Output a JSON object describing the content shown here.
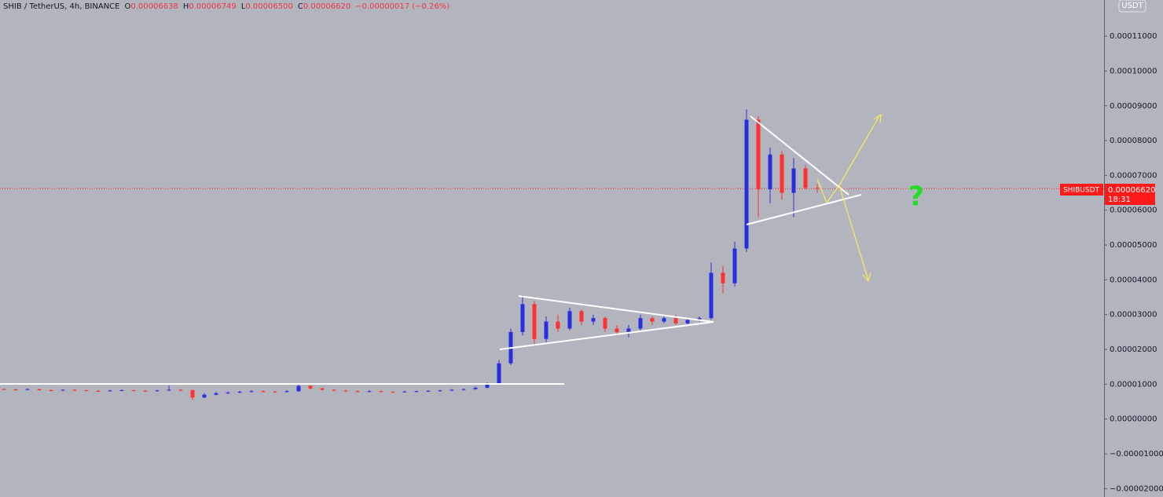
{
  "chart_data": {
    "type": "candlestick",
    "title": "SHIB / TetherUS, 4h, BINANCE",
    "ohlc_labels": [
      "O",
      "H",
      "L",
      "C"
    ],
    "ohlc_values": [
      "0.00006638",
      "0.00006749",
      "0.00006500",
      "0.00006620"
    ],
    "change": "−0.00000017 (−0.26%)",
    "currency": "USDT",
    "symbol_tag": "SHIBUSDT",
    "price_tag": "0.00006620",
    "countdown": "18:31",
    "annotation": "?",
    "up_color": "#2a2ee0",
    "down_color": "#ff3030",
    "ylim": [
      -2.24e-05,
      0.0001204
    ],
    "yticks": [
      {
        "value": -2e-05,
        "label": "−0.00002000"
      },
      {
        "value": -1e-05,
        "label": "−0.00001000"
      },
      {
        "value": 0,
        "label": "0.00000000"
      },
      {
        "value": 1e-05,
        "label": "0.00001000"
      },
      {
        "value": 2e-05,
        "label": "0.00002000"
      },
      {
        "value": 3e-05,
        "label": "0.00003000"
      },
      {
        "value": 4e-05,
        "label": "0.00004000"
      },
      {
        "value": 5e-05,
        "label": "0.00005000"
      },
      {
        "value": 6e-05,
        "label": "0.00006000"
      },
      {
        "value": 7e-05,
        "label": "0.00007000"
      },
      {
        "value": 8e-05,
        "label": "0.00008000"
      },
      {
        "value": 9e-05,
        "label": "0.00009000"
      },
      {
        "value": 0.0001,
        "label": "0.00010000"
      },
      {
        "value": 0.00011,
        "label": "0.00011000"
      }
    ],
    "open": [
      8.6e-06,
      8.5e-06,
      8.4e-06,
      8.6e-06,
      8.3e-06,
      8.2e-06,
      8.4e-06,
      8.3e-06,
      8.1e-06,
      8e-06,
      8.2e-06,
      8.3e-06,
      8.1e-06,
      8e-06,
      8.2e-06,
      8.4e-06,
      8.3e-06,
      6.2e-06,
      7e-06,
      7.4e-06,
      7.6e-06,
      7.8e-06,
      8e-06,
      7.9e-06,
      7.8e-06,
      8e-06,
      9.5e-06,
      8.8e-06,
      8.4e-06,
      8.2e-06,
      8e-06,
      7.9e-06,
      8e-06,
      7.8e-06,
      7.7e-06,
      7.9e-06,
      8e-06,
      8.1e-06,
      8.2e-06,
      8.4e-06,
      8.6e-06,
      9e-06,
      1e-05,
      1.6e-05,
      2.5e-05,
      3.3e-05,
      2.3e-05,
      2.8e-05,
      2.6e-05,
      3.1e-05,
      2.8e-05,
      2.9e-05,
      2.6e-05,
      2.5e-05,
      2.6e-05,
      2.9e-05,
      2.8e-05,
      2.9e-05,
      2.75e-05,
      2.85e-05,
      2.9e-05,
      4.2e-05,
      3.9e-05,
      4.9e-05,
      8.6e-05,
      6.6e-05,
      7.6e-05,
      6.5e-05,
      7.2e-05,
      6.638e-05
    ],
    "high": [
      8.8e-06,
      8.7e-06,
      8.8e-06,
      8.7e-06,
      8.5e-06,
      8.6e-06,
      8.6e-06,
      8.4e-06,
      8.3e-06,
      8.4e-06,
      8.5e-06,
      8.4e-06,
      8.3e-06,
      8.4e-06,
      9.6e-06,
      8.6e-06,
      8.5e-06,
      7.4e-06,
      7.8e-06,
      8e-06,
      8.1e-06,
      8.3e-06,
      8.2e-06,
      8.1e-06,
      8.3e-06,
      1e-05,
      9.7e-06,
      9e-06,
      8.6e-06,
      8.4e-06,
      8.2e-06,
      8.3e-06,
      8.2e-06,
      8e-06,
      8.1e-06,
      8.2e-06,
      8.3e-06,
      8.4e-06,
      8.6e-06,
      8.8e-06,
      9.3e-06,
      1.05e-05,
      1.7e-05,
      2.6e-05,
      3.55e-05,
      3.4e-05,
      2.95e-05,
      3e-05,
      3.2e-05,
      3.15e-05,
      3e-05,
      2.95e-05,
      2.7e-05,
      2.7e-05,
      3e-05,
      2.95e-05,
      2.95e-05,
      3e-05,
      2.9e-05,
      2.95e-05,
      4.5e-05,
      4.4e-05,
      5.1e-05,
      8.9e-05,
      8.7e-05,
      7.8e-05,
      7.7e-05,
      7.5e-05,
      7.3e-05,
      6.749e-05
    ],
    "low": [
      8.3e-06,
      8.2e-06,
      8.3e-06,
      8.1e-06,
      8e-06,
      8.1e-06,
      8.1e-06,
      7.9e-06,
      7.8e-06,
      7.9e-06,
      8e-06,
      7.9e-06,
      7.8e-06,
      7.9e-06,
      8.1e-06,
      8e-06,
      5.5e-06,
      6e-06,
      6.8e-06,
      7.2e-06,
      7.4e-06,
      7.6e-06,
      7.7e-06,
      7.6e-06,
      7.6e-06,
      7.8e-06,
      8.5e-06,
      8.2e-06,
      8e-06,
      7.8e-06,
      7.7e-06,
      7.7e-06,
      7.6e-06,
      7.5e-06,
      7.6e-06,
      7.7e-06,
      7.8e-06,
      7.9e-06,
      8e-06,
      8.2e-06,
      8.4e-06,
      8.8e-06,
      9.8e-06,
      1.55e-05,
      2.4e-05,
      2.1e-05,
      2.2e-05,
      2.5e-05,
      2.55e-05,
      2.7e-05,
      2.7e-05,
      2.5e-05,
      2.4e-05,
      2.35e-05,
      2.55e-05,
      2.7e-05,
      2.75e-05,
      2.7e-05,
      2.7e-05,
      2.8e-05,
      2.85e-05,
      3.6e-05,
      3.8e-05,
      4.8e-05,
      5.8e-05,
      6.2e-05,
      6.3e-05,
      5.8e-05,
      6.6e-05,
      6.5e-05
    ],
    "close": [
      8.5e-06,
      8.4e-06,
      8.6e-06,
      8.3e-06,
      8.2e-06,
      8.4e-06,
      8.3e-06,
      8.1e-06,
      8e-06,
      8.2e-06,
      8.3e-06,
      8.1e-06,
      8e-06,
      8.2e-06,
      8.4e-06,
      8.3e-06,
      6.2e-06,
      7e-06,
      7.4e-06,
      7.6e-06,
      7.8e-06,
      8e-06,
      7.9e-06,
      7.8e-06,
      8e-06,
      9.5e-06,
      8.8e-06,
      8.4e-06,
      8.2e-06,
      8e-06,
      7.9e-06,
      8e-06,
      7.8e-06,
      7.7e-06,
      7.9e-06,
      8e-06,
      8.1e-06,
      8.2e-06,
      8.4e-06,
      8.6e-06,
      9e-06,
      1e-05,
      1.6e-05,
      2.5e-05,
      3.3e-05,
      2.3e-05,
      2.8e-05,
      2.6e-05,
      3.1e-05,
      2.8e-05,
      2.9e-05,
      2.6e-05,
      2.5e-05,
      2.6e-05,
      2.9e-05,
      2.8e-05,
      2.9e-05,
      2.75e-05,
      2.85e-05,
      2.9e-05,
      4.2e-05,
      3.9e-05,
      4.9e-05,
      8.6e-05,
      6.6e-05,
      7.6e-05,
      6.5e-05,
      7.2e-05,
      6.638e-05,
      6.62e-05
    ]
  }
}
